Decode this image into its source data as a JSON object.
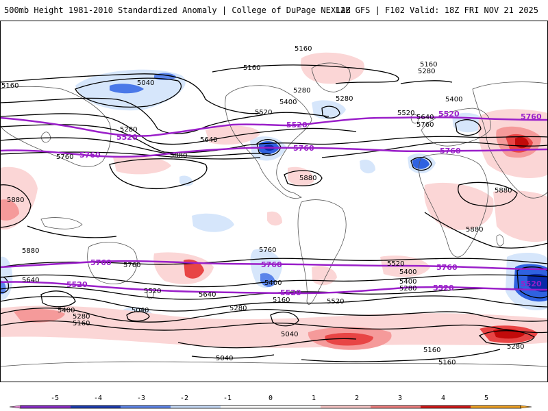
{
  "header": {
    "title": "500mb Height 1981-2010 Standardized Anomaly | College of DuPage NEXLAB",
    "run_info": "12Z GFS | F102 Valid: 18Z FRI NOV 21 2025"
  },
  "colors": {
    "contour_black": "#000000",
    "contour_purple": "#9a1fc9",
    "land_outline": "#555555",
    "neg_light": "#d6e6fb",
    "neg_mid": "#7fa9f0",
    "neg_strong": "#2f62e0",
    "neg_deep": "#0a2aa8",
    "pos_light": "#fbd6d6",
    "pos_mid": "#f59a9a",
    "pos_strong": "#e84545",
    "pos_deep": "#c20a0a"
  },
  "contours": {
    "black_labels": [
      "5160",
      "5160",
      "5040",
      "5160",
      "5280",
      "5520",
      "5400",
      "5640",
      "5280",
      "5880",
      "5760",
      "5880",
      "5880",
      "5880",
      "5760",
      "5640",
      "5520",
      "5400",
      "5280",
      "5160",
      "5040",
      "5400",
      "5160",
      "5280",
      "5520",
      "5040",
      "5040",
      "5760",
      "5640",
      "5520",
      "5400",
      "5280",
      "5160",
      "5160",
      "5280",
      "5160",
      "5400",
      "5280",
      "5640",
      "5760",
      "5520",
      "5400",
      "5280",
      "5880",
      "5880"
    ],
    "purple_labels": [
      "5520",
      "5760",
      "5520",
      "5760",
      "5520",
      "5760",
      "5760",
      "5520",
      "5760",
      "5520",
      "5760",
      "5520",
      "5760",
      "5520"
    ]
  },
  "colorbar": {
    "ticks": [
      "-5",
      "-4",
      "-3",
      "-2",
      "-1",
      "0",
      "1",
      "2",
      "3",
      "4",
      "5"
    ],
    "colors": [
      "#e38bd6",
      "#8a2ec6",
      "#1f3eb0",
      "#5f86ea",
      "#c8dcf8",
      "#ffffff",
      "#ffffff",
      "#f9c7c7",
      "#ef7f7f",
      "#d11a1a",
      "#f1a326"
    ]
  }
}
